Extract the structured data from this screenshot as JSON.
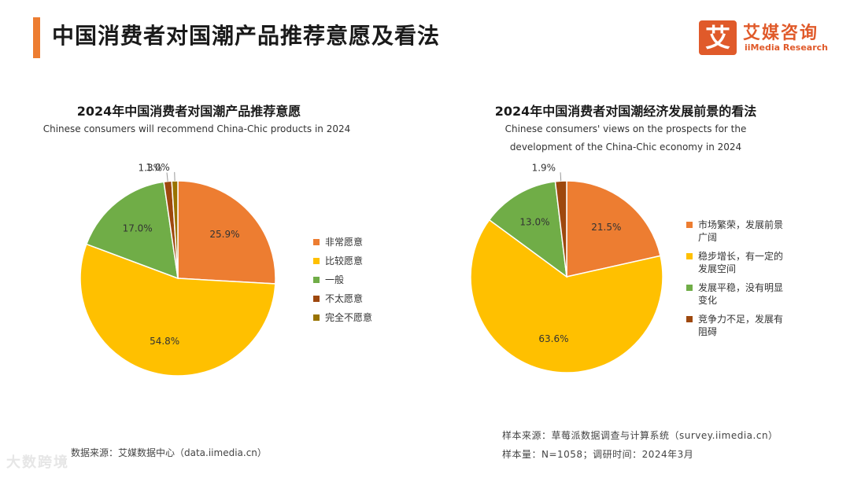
{
  "header": {
    "title": "中国消费者对国潮产品推荐意愿及看法",
    "accent_color": "#ED7D31"
  },
  "logo": {
    "mark": "艾",
    "name_cn": "艾媒咨询",
    "name_en": "iiMedia Research",
    "color": "#E05A2A"
  },
  "chart_data": [
    {
      "type": "pie",
      "title": "2024年中国消费者对国潮产品推荐意愿",
      "subtitle": "Chinese consumers will recommend China-Chic products in 2024",
      "categories": [
        "非常愿意",
        "比较愿意",
        "一般",
        "不太愿意",
        "完全不愿意"
      ],
      "values": [
        25.9,
        54.8,
        17.0,
        1.3,
        1.0
      ],
      "labels": [
        "25.9%",
        "54.8%",
        "17.0%",
        "1.3%",
        "1.0%"
      ],
      "colors": [
        "#ED7D31",
        "#FFC000",
        "#70AD47",
        "#9E480E",
        "#997300"
      ],
      "legend_position": "right"
    },
    {
      "type": "pie",
      "title": "2024年中国消费者对国潮经济发展前景的看法",
      "subtitle_lines": [
        "Chinese consumers' views on the prospects for the",
        "development of the China-Chic economy in 2024"
      ],
      "categories": [
        "市场繁荣，发展前景\n广阔",
        "稳步增长，有一定的\n发展空间",
        "发展平稳，没有明显\n变化",
        "竞争力不足，发展有\n阻碍"
      ],
      "values": [
        21.5,
        63.6,
        13.0,
        1.9
      ],
      "labels": [
        "21.5%",
        "63.6%",
        "13.0%",
        "1.9%"
      ],
      "colors": [
        "#ED7D31",
        "#FFC000",
        "#70AD47",
        "#9E480E"
      ],
      "legend_position": "right"
    }
  ],
  "footer": {
    "source_left": "数据来源：艾媒数据中心（data.iimedia.cn）",
    "sample_source": "样本来源：草莓派数据调查与计算系统（survey.iimedia.cn）",
    "sample_info": "样本量：N=1058；调研时间：2024年3月",
    "watermark": "大数跨境"
  }
}
